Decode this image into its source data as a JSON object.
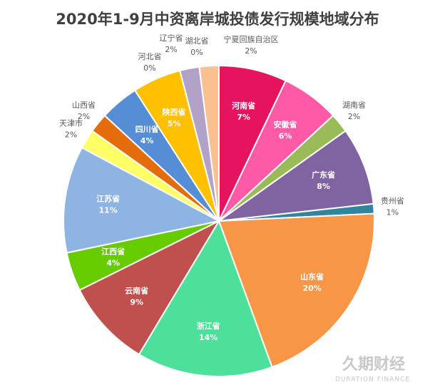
{
  "chart_data": {
    "type": "pie",
    "title": "2020年1-9月中资离岸城投债发行规模地域分布",
    "categories": [
      "河南省",
      "安徽省",
      "湖南省",
      "广东省",
      "贵州省",
      "山东省",
      "浙江省",
      "云南省",
      "江西省",
      "江苏省",
      "天津市",
      "山西省",
      "四川省",
      "陕西省",
      "河北省",
      "辽宁省",
      "湖北省",
      "宁夏回族自治区"
    ],
    "values": [
      7,
      6,
      2,
      8,
      1,
      20,
      14,
      9,
      4,
      11,
      2,
      2,
      4,
      5,
      0,
      2,
      0,
      2
    ],
    "value_labels": [
      "7%",
      "6%",
      "2%",
      "8%",
      "1%",
      "20%",
      "14%",
      "9%",
      "4%",
      "11%",
      "2%",
      "2%",
      "4%",
      "5%",
      "0%",
      "2%",
      "0%",
      "2%"
    ],
    "colors": [
      "#e6135e",
      "#ff5aa8",
      "#9bbb59",
      "#8064a2",
      "#31859c",
      "#f79646",
      "#4de09a",
      "#c0504d",
      "#66cc00",
      "#8eb4e3",
      "#ffff66",
      "#e46c0a",
      "#558ed5",
      "#ffc000",
      "#c0c0c0",
      "#b3a2c7",
      "#93cddd",
      "#fac090"
    ],
    "watermark": "久期财经",
    "watermark_sub": "DURATION FINANCE"
  }
}
